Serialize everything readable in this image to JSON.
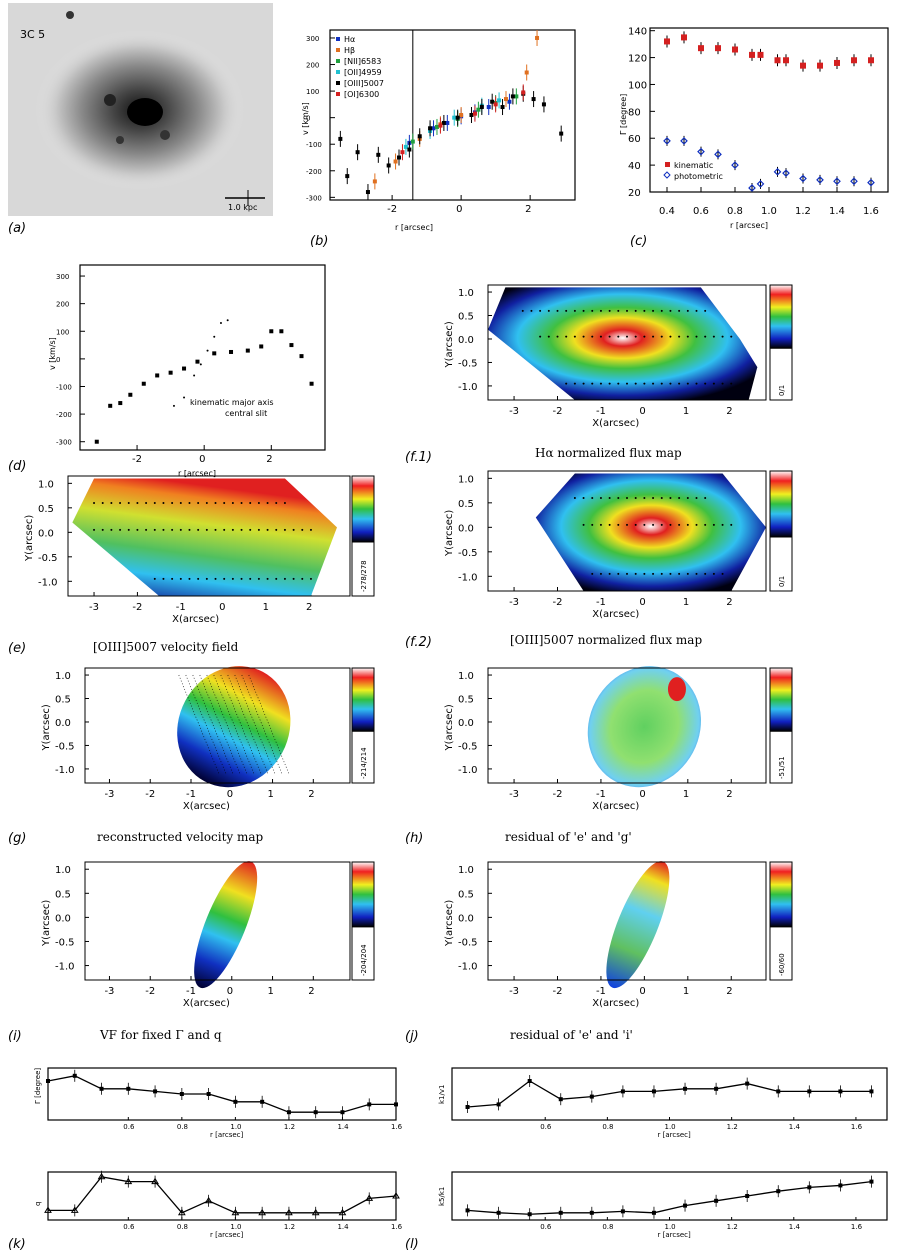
{
  "image_a": {
    "label": "3C 5",
    "scale_bar": "1.0 kpc",
    "panel_label": "(a)"
  },
  "panels": {
    "b": "(b)",
    "c": "(c)",
    "d": "(d)",
    "e": "(e)",
    "f1": "(f.1)",
    "f2": "(f.2)",
    "g": "(g)",
    "h": "(h)",
    "i": "(i)",
    "j": "(j)",
    "k": "(k)",
    "l": "(l)"
  },
  "captions": {
    "f1": "Hα normalized flux map",
    "e": "[OIII]5007 velocity field",
    "f2": "[OIII]5007 normalized flux map",
    "g": "reconstructed velocity map",
    "h": "residual of 'e' and 'g'",
    "i": "VF for fixed Γ and q",
    "j": "residual of 'e' and 'i'"
  },
  "colorbar_labels": {
    "e": "-278/278",
    "f1": "0/1",
    "f2": "0/1",
    "g": "-214/214",
    "h": "-51/51",
    "i": "-204/204",
    "j": "-60/60"
  },
  "map_axes": {
    "xlabel": "X(arcsec)",
    "ylabel": "Y(arcsec)",
    "xticks": [
      "-3",
      "-2",
      "-1",
      "0",
      "1",
      "2"
    ],
    "yticks": [
      "1.0",
      "0.5",
      "0.0",
      "-0.5",
      "-1.0"
    ]
  },
  "colors": {
    "red": "#d42020",
    "blue": "#1030c0",
    "orange": "#e07020",
    "green": "#20a040",
    "cyan": "#20c0d0"
  },
  "chart_data": [
    {
      "id": "b",
      "type": "scatter",
      "xlabel": "r [arcsec]",
      "ylabel": "v [km/s]",
      "xlim": [
        -3.8,
        3.3
      ],
      "ylim": [
        -310,
        330
      ],
      "xticks": [
        "-2",
        "0",
        "2"
      ],
      "yticks": [
        "300",
        "200",
        "100",
        "0",
        "-100",
        "-200",
        "-300"
      ],
      "vline_x": -1.4,
      "series": [
        {
          "name": "Hα",
          "color": "#1030c0",
          "points": [
            [
              -1.5,
              -95
            ],
            [
              -0.8,
              -40
            ],
            [
              -0.4,
              -20
            ],
            [
              0.0,
              5
            ],
            [
              0.4,
              20
            ],
            [
              0.8,
              40
            ],
            [
              1.4,
              60
            ]
          ]
        },
        {
          "name": "Hβ",
          "color": "#e07020",
          "points": [
            [
              -2.5,
              -240
            ],
            [
              -1.9,
              -165
            ],
            [
              -1.2,
              -80
            ],
            [
              -0.6,
              -25
            ],
            [
              0.0,
              10
            ],
            [
              1.3,
              70
            ],
            [
              1.9,
              170
            ],
            [
              2.2,
              300
            ]
          ]
        },
        {
          "name": "[NII]6583",
          "color": "#20a040",
          "points": [
            [
              -1.4,
              -90
            ],
            [
              -0.7,
              -35
            ],
            [
              -0.1,
              -5
            ],
            [
              0.5,
              30
            ],
            [
              1.0,
              55
            ],
            [
              1.6,
              80
            ]
          ]
        },
        {
          "name": "[OII]4959",
          "color": "#20c0d0",
          "points": [
            [
              -1.6,
              -110
            ],
            [
              -0.9,
              -50
            ],
            [
              -0.2,
              0
            ],
            [
              0.6,
              45
            ],
            [
              1.1,
              65
            ]
          ]
        },
        {
          "name": "[OIII]5007",
          "color": "#000000",
          "points": [
            [
              -3.5,
              -80
            ],
            [
              -3.3,
              -220
            ],
            [
              -3.0,
              -130
            ],
            [
              -2.7,
              -280
            ],
            [
              -2.4,
              -140
            ],
            [
              -2.1,
              -180
            ],
            [
              -1.8,
              -150
            ],
            [
              -1.5,
              -120
            ],
            [
              -1.2,
              -70
            ],
            [
              -0.9,
              -40
            ],
            [
              -0.5,
              -20
            ],
            [
              -0.1,
              0
            ],
            [
              0.3,
              10
            ],
            [
              0.6,
              40
            ],
            [
              0.9,
              60
            ],
            [
              1.2,
              40
            ],
            [
              1.5,
              80
            ],
            [
              1.8,
              90
            ],
            [
              2.1,
              70
            ],
            [
              2.4,
              50
            ],
            [
              2.9,
              -60
            ]
          ]
        },
        {
          "name": "[OI]6300",
          "color": "#d42020",
          "points": [
            [
              -1.7,
              -130
            ],
            [
              -0.6,
              -30
            ],
            [
              0.4,
              15
            ],
            [
              1.0,
              50
            ],
            [
              1.8,
              95
            ]
          ]
        }
      ]
    },
    {
      "id": "c",
      "type": "scatter",
      "xlabel": "r [arcsec]",
      "ylabel": "Γ [degree]",
      "xlim": [
        0.3,
        1.7
      ],
      "ylim": [
        20,
        142
      ],
      "xticks": [
        "0.4",
        "0.6",
        "0.8",
        "1.0",
        "1.2",
        "1.4",
        "1.6"
      ],
      "yticks": [
        "140",
        "120",
        "100",
        "80",
        "60",
        "40",
        "20"
      ],
      "series": [
        {
          "name": "kinematic",
          "color": "#d42020",
          "x": [
            0.4,
            0.5,
            0.6,
            0.7,
            0.8,
            0.9,
            0.95,
            1.05,
            1.1,
            1.2,
            1.3,
            1.4,
            1.5,
            1.6
          ],
          "values": [
            132,
            135,
            127,
            127,
            126,
            122,
            122,
            118,
            118,
            114,
            114,
            116,
            118,
            118
          ]
        },
        {
          "name": "photometric",
          "color": "#1030c0",
          "x": [
            0.4,
            0.5,
            0.6,
            0.7,
            0.8,
            0.9,
            0.95,
            1.05,
            1.1,
            1.2,
            1.3,
            1.4,
            1.5,
            1.6
          ],
          "values": [
            58,
            58,
            50,
            48,
            40,
            23,
            26,
            35,
            34,
            30,
            29,
            28,
            28,
            27
          ]
        }
      ]
    },
    {
      "id": "d",
      "type": "scatter",
      "xlabel": "r [arcsec]",
      "ylabel": "v [km/s]",
      "xlim": [
        -3.7,
        3.6
      ],
      "ylim": [
        -330,
        340
      ],
      "xticks": [
        "-2",
        "0",
        "2"
      ],
      "yticks": [
        "300",
        "200",
        "100",
        "0",
        "-100",
        "-200",
        "-300"
      ],
      "series": [
        {
          "name": "kinematic major axis",
          "color": "#000000",
          "x": [
            -3.2,
            -2.8,
            -2.5,
            -2.2,
            -1.8,
            -1.4,
            -1.0,
            -0.6,
            -0.2,
            0.3,
            0.8,
            1.3,
            1.7,
            2.0,
            2.3,
            2.6,
            2.9,
            3.2
          ],
          "values": [
            -300,
            -170,
            -160,
            -130,
            -90,
            -60,
            -50,
            -35,
            -10,
            20,
            25,
            30,
            45,
            100,
            100,
            50,
            10,
            -90
          ]
        },
        {
          "name": "central slit",
          "color": "#000000",
          "x": [
            -0.9,
            -0.6,
            -0.3,
            -0.1,
            0.1,
            0.3,
            0.5,
            0.7
          ],
          "values": [
            -170,
            -140,
            -60,
            -20,
            30,
            80,
            130,
            140
          ]
        }
      ]
    },
    {
      "id": "k1",
      "type": "line",
      "xlabel": "r [arcsec]",
      "ylabel": "Γ [degree]",
      "xlim": [
        0.3,
        1.6
      ],
      "ylim": [
        0,
        1
      ],
      "xticks": [
        "0.6",
        "0.8",
        "1.0",
        "1.2",
        "1.4",
        "1.6"
      ],
      "x": [
        0.3,
        0.4,
        0.5,
        0.6,
        0.7,
        0.8,
        0.9,
        1.0,
        1.1,
        1.2,
        1.3,
        1.4,
        1.5,
        1.6
      ],
      "values": [
        0.75,
        0.85,
        0.6,
        0.6,
        0.55,
        0.5,
        0.5,
        0.35,
        0.35,
        0.15,
        0.15,
        0.15,
        0.3,
        0.3
      ]
    },
    {
      "id": "k2",
      "type": "line",
      "xlabel": "r [arcsec]",
      "ylabel": "q",
      "xlim": [
        0.3,
        1.6
      ],
      "ylim": [
        0,
        1
      ],
      "xticks": [
        "0.6",
        "0.8",
        "1.0",
        "1.2",
        "1.4",
        "1.6"
      ],
      "x": [
        0.3,
        0.4,
        0.5,
        0.6,
        0.7,
        0.8,
        0.9,
        1.0,
        1.1,
        1.2,
        1.3,
        1.4,
        1.5,
        1.6
      ],
      "values": [
        0.2,
        0.2,
        0.9,
        0.8,
        0.8,
        0.15,
        0.4,
        0.15,
        0.15,
        0.15,
        0.15,
        0.15,
        0.45,
        0.5
      ]
    },
    {
      "id": "l1",
      "type": "line",
      "xlabel": "r [arcsec]",
      "ylabel": "k1/v1",
      "xlim": [
        0.3,
        1.7
      ],
      "ylim": [
        0,
        1
      ],
      "xticks": [
        "0.6",
        "0.8",
        "1.0",
        "1.2",
        "1.4",
        "1.6"
      ],
      "x": [
        0.35,
        0.45,
        0.55,
        0.65,
        0.75,
        0.85,
        0.95,
        1.05,
        1.15,
        1.25,
        1.35,
        1.45,
        1.55,
        1.65
      ],
      "values": [
        0.25,
        0.3,
        0.75,
        0.4,
        0.45,
        0.55,
        0.55,
        0.6,
        0.6,
        0.7,
        0.55,
        0.55,
        0.55,
        0.55
      ]
    },
    {
      "id": "l2",
      "type": "line",
      "xlabel": "r [arcsec]",
      "ylabel": "k5/k1",
      "xlim": [
        0.3,
        1.7
      ],
      "ylim": [
        0,
        1
      ],
      "xticks": [
        "0.6",
        "0.8",
        "1.0",
        "1.2",
        "1.4",
        "1.6"
      ],
      "x": [
        0.35,
        0.45,
        0.55,
        0.65,
        0.75,
        0.85,
        0.95,
        1.05,
        1.15,
        1.25,
        1.35,
        1.45,
        1.55,
        1.65
      ],
      "values": [
        0.2,
        0.15,
        0.12,
        0.15,
        0.15,
        0.18,
        0.15,
        0.3,
        0.4,
        0.5,
        0.6,
        0.68,
        0.72,
        0.8
      ]
    }
  ]
}
